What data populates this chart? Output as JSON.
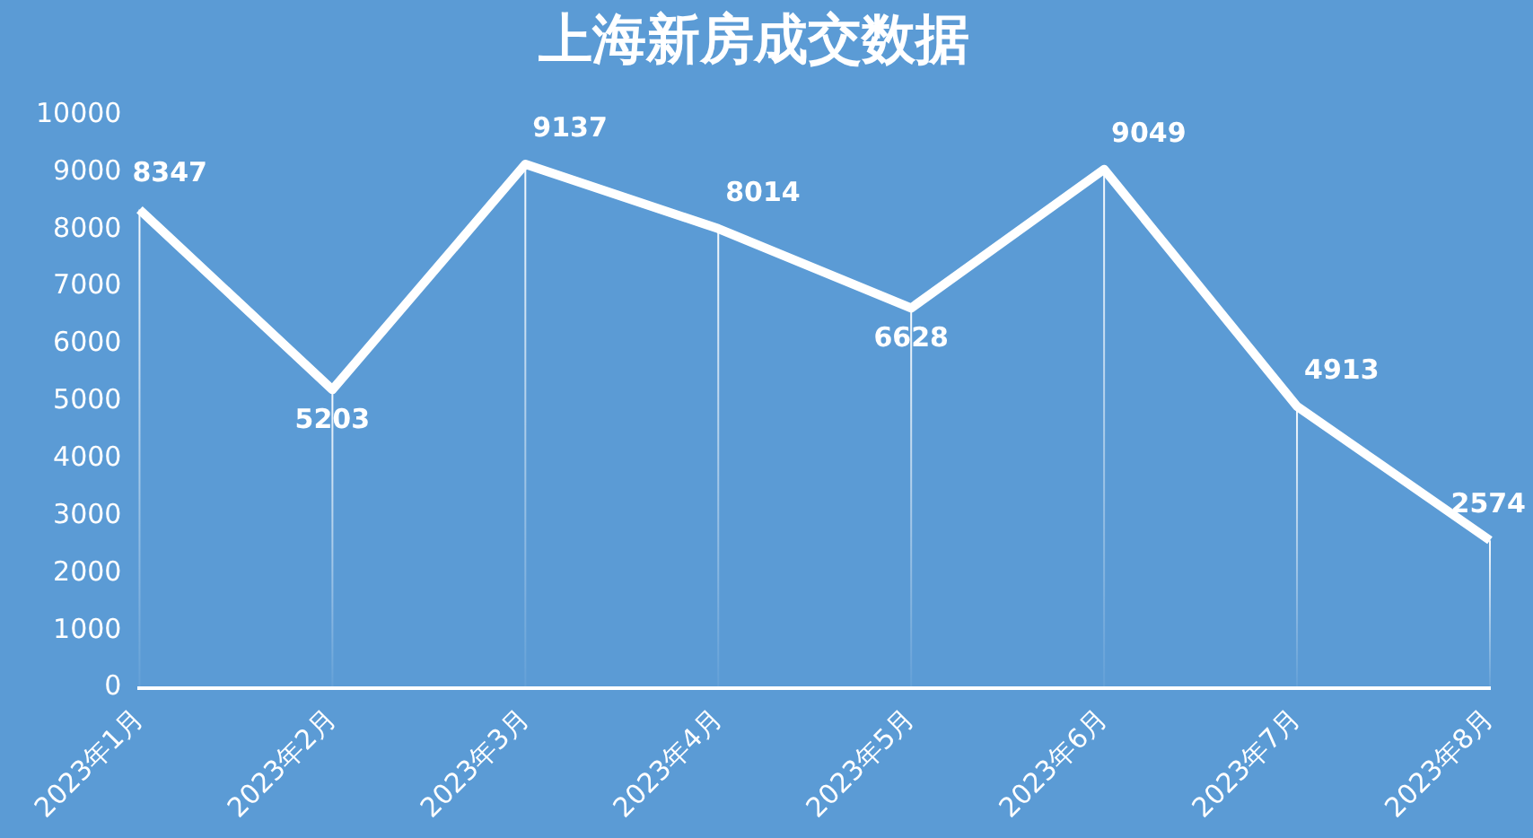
{
  "chart_data": {
    "type": "line",
    "title": "上海新房成交数据",
    "categories": [
      "2023年1月",
      "2023年2月",
      "2023年3月",
      "2023年4月",
      "2023年5月",
      "2023年6月",
      "2023年7月",
      "2023年8月"
    ],
    "series": [
      {
        "color": "#ffffff",
        "values": [
          8347,
          5203,
          9137,
          8014,
          6628,
          9049,
          4913,
          2574
        ]
      }
    ],
    "ylim": [
      0,
      10000
    ],
    "yticks": [
      0,
      1000,
      2000,
      3000,
      4000,
      5000,
      6000,
      7000,
      8000,
      9000,
      10000
    ],
    "data_labels": true,
    "marker": "none",
    "line_style": "solid"
  }
}
